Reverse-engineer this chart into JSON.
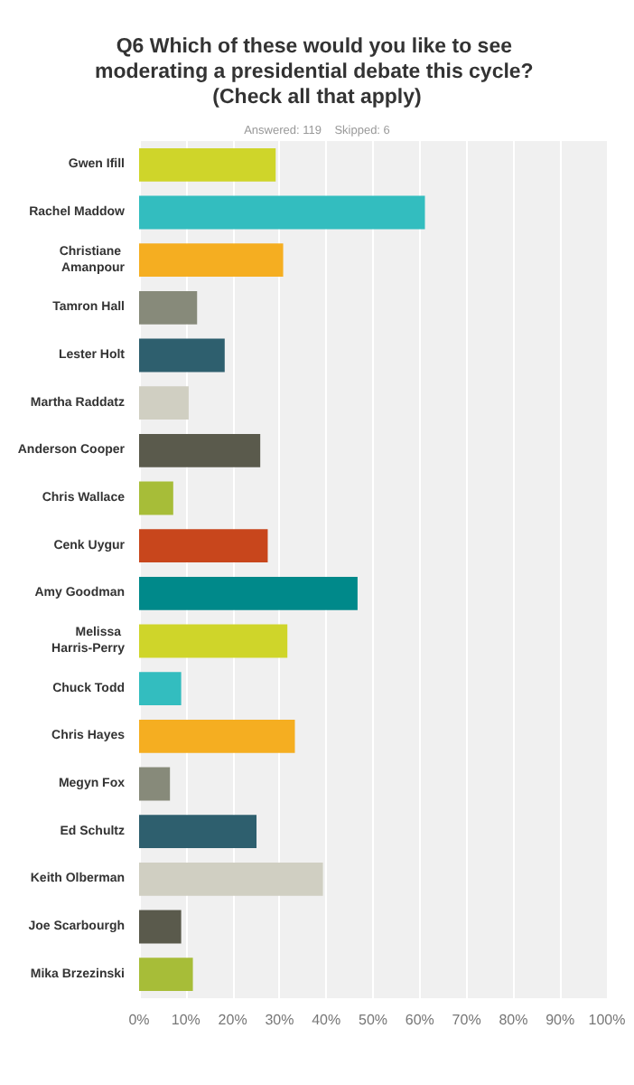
{
  "chart_data": {
    "type": "bar",
    "orientation": "horizontal",
    "title": "Q6 Which of these would you like to see moderating a presidential debate this cycle? (Check all that apply)",
    "subtitle": "Answered: 119    Skipped: 6",
    "categories": [
      "Gwen Ifill",
      "Rachel Maddow",
      "Christiane Amanpour",
      "Tamron Hall",
      "Lester Holt",
      "Martha Raddatz",
      "Anderson Cooper",
      "Chris Wallace",
      "Cenk Uygur",
      "Amy Goodman",
      "Melissa Harris-Perry",
      "Chuck Todd",
      "Chris Hayes",
      "Megyn Fox",
      "Ed Schultz",
      "Keith Olberman",
      "Joe Scarbourgh",
      "Mika Brzezinski"
    ],
    "values": [
      29.2,
      61.1,
      30.8,
      12.4,
      18.3,
      10.6,
      25.9,
      7.3,
      27.5,
      46.7,
      31.7,
      9.0,
      33.3,
      6.6,
      25.1,
      39.3,
      9.0,
      11.5
    ],
    "colors": [
      "#cfd52a",
      "#33bdbf",
      "#f5ae21",
      "#878a7a",
      "#2e5f6e",
      "#d0cfc2",
      "#5a5a4c",
      "#a7bd38",
      "#c8461c",
      "#00898a",
      "#cfd52a",
      "#33bdbf",
      "#f5ae21",
      "#878a7a",
      "#2e5f6e",
      "#d0cfc2",
      "#5a5a4c",
      "#a7bd38"
    ],
    "xlim": [
      0,
      100
    ],
    "xticks": [
      {
        "value": 0,
        "label": "0%"
      },
      {
        "value": 10,
        "label": "10%"
      },
      {
        "value": 20,
        "label": "20%"
      },
      {
        "value": 30,
        "label": "30%"
      },
      {
        "value": 40,
        "label": "40%"
      },
      {
        "value": 50,
        "label": "50%"
      },
      {
        "value": 60,
        "label": "60%"
      },
      {
        "value": 70,
        "label": "70%"
      },
      {
        "value": 80,
        "label": "80%"
      },
      {
        "value": 90,
        "label": "90%"
      },
      {
        "value": 100,
        "label": "100%"
      }
    ],
    "grid": "x"
  }
}
